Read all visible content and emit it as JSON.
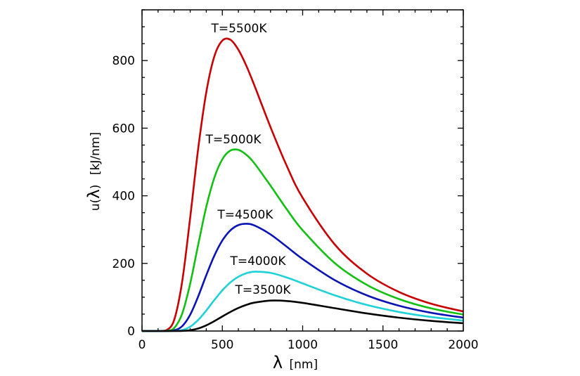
{
  "chart_data": {
    "type": "line",
    "title": "",
    "xlabel": "λ [nm]",
    "xlabel_symbol": "λ",
    "xlabel_unit": "[nm]",
    "ylabel": "u(λ)  [kJ/nm]",
    "ylabel_prefix": "u(",
    "ylabel_symbol": "λ",
    "ylabel_suffix": ")",
    "ylabel_unit": "[kJ/nm]",
    "xlim": [
      0,
      2000
    ],
    "ylim": [
      0,
      950
    ],
    "grid": false,
    "xticks": [
      0,
      500,
      1000,
      1500,
      2000
    ],
    "xtick_labels": [
      "0",
      "500",
      "1000",
      "1500",
      "2000"
    ],
    "x_minor_step": 100,
    "yticks": [
      0,
      200,
      400,
      600,
      800
    ],
    "ytick_labels": [
      "0",
      "200",
      "400",
      "600",
      "800"
    ],
    "y_minor_step": 50,
    "x": [
      0,
      100,
      150,
      200,
      250,
      300,
      350,
      400,
      450,
      500,
      550,
      600,
      650,
      700,
      800,
      900,
      1000,
      1200,
      1400,
      1600,
      1800,
      2000
    ],
    "series": [
      {
        "name": "T=5500K",
        "color": "#c80000",
        "values": [
          0,
          0,
          1.8,
          32.6,
          146.2,
          336,
          540.7,
          706,
          812,
          859,
          861.7,
          832,
          784,
          726,
          603,
          489.6,
          394,
          256,
          169.7,
          115.5,
          80.7,
          57.9
        ]
      },
      {
        "name": "T=5000K",
        "color": "#11c011",
        "values": [
          0,
          0,
          0.4,
          8.8,
          51.3,
          140.5,
          255.9,
          367,
          453,
          508,
          533.6,
          535.7,
          521,
          495.8,
          430,
          360.8,
          298,
          200.9,
          136.5,
          94.6,
          67,
          48.6
        ]
      },
      {
        "name": "T=4500K",
        "color": "#0a14b4",
        "values": [
          0,
          0,
          0,
          1.78,
          14.3,
          48.4,
          102.7,
          165,
          222.6,
          267.7,
          297.7,
          313.4,
          317.2,
          312.1,
          285.7,
          249.7,
          213,
          150.4,
          105.5,
          74.8,
          53.9,
          39.6
        ]
      },
      {
        "name": "T=4000K",
        "color": "#1ed2d8",
        "values": [
          0,
          0,
          0,
          0.24,
          2.89,
          12.8,
          32.8,
          60.7,
          91.5,
          120.3,
          143.7,
          160.6,
          170.9,
          175.5,
          172,
          158.5,
          140.9,
          105.5,
          77.1,
          56.3,
          41.5,
          31.0
        ]
      },
      {
        "name": "T=3500K",
        "color": "#000000",
        "values": [
          0,
          0,
          0,
          0.02,
          0.37,
          2.3,
          7.55,
          16.8,
          29.2,
          43.0,
          56.4,
          68.1,
          77.4,
          84.0,
          90.0,
          88.8,
          83.3,
          67.5,
          52.1,
          39.5,
          30.0,
          22.9
        ]
      }
    ],
    "annotations": [
      {
        "text": "T=5500K",
        "x": 604,
        "y": 896
      },
      {
        "text": "T=5000K",
        "x": 569,
        "y": 568
      },
      {
        "text": "T=4500K",
        "x": 643,
        "y": 345
      },
      {
        "text": "T=4000K",
        "x": 722,
        "y": 208
      },
      {
        "text": "T=3500K",
        "x": 753,
        "y": 123
      }
    ]
  }
}
